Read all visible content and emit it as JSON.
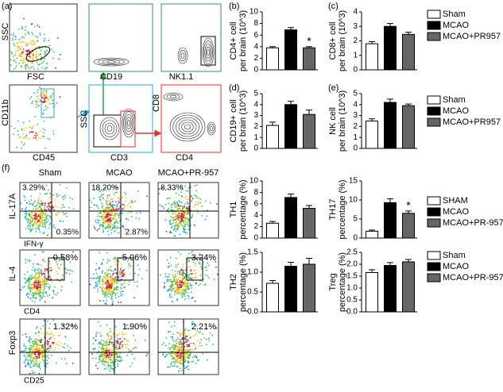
{
  "flow_a": {
    "label": "(a)",
    "texts": [
      "SSC",
      "FSC",
      "CD19",
      "NK1.1",
      "CD11b",
      "CD45",
      "SSC",
      "CD3",
      "CD8",
      "CD4"
    ]
  },
  "flow_f": {
    "label": "(f)",
    "columns": [
      "Sham",
      "MCAO",
      "MCAO+PR-957"
    ],
    "rows": [
      {
        "y_label": "IL-17A",
        "x_label": "IFN-γ",
        "gates": [
          [
            "3.29%",
            "0.35%"
          ],
          [
            "18.20%",
            "2.87%"
          ],
          [
            "8.33%"
          ]
        ]
      },
      {
        "y_label": "IL-4",
        "x_label": "CD4",
        "gates": [
          [
            "0.58%"
          ],
          [
            "5.06%"
          ],
          [
            "3.24%"
          ]
        ]
      },
      {
        "y_label": "Foxp3",
        "x_label": "CD25",
        "gates": [
          [
            "1.32%"
          ],
          [
            "1.90%"
          ],
          [
            "2.21%"
          ]
        ]
      }
    ]
  },
  "chart_data": [
    {
      "type": "bar",
      "label": "(b)",
      "ylabel": [
        "CD4+ cell",
        "per brain (10^3)"
      ],
      "values": [
        3.8,
        6.9,
        3.8
      ],
      "errors": [
        0.2,
        0.4,
        0.2
      ],
      "colors": [
        "#ffffff",
        "#000000",
        "#666666"
      ],
      "annotations": [
        null,
        null,
        "*"
      ],
      "ylim": [
        0,
        10
      ],
      "yticks": [
        0,
        2,
        4,
        6,
        8,
        10
      ]
    },
    {
      "type": "bar",
      "label": "(c)",
      "ylabel": [
        "CD8+ cell",
        "per brain (10^3)"
      ],
      "values": [
        1.8,
        3.0,
        2.45
      ],
      "errors": [
        0.15,
        0.2,
        0.15
      ],
      "colors": [
        "#ffffff",
        "#000000",
        "#666666"
      ],
      "ylim": [
        0,
        4
      ],
      "yticks": [
        0,
        1,
        2,
        3,
        4
      ]
    },
    {
      "type": "bar",
      "label": "(d)",
      "ylabel": [
        "CD19+ cell",
        "per brain (10^3)"
      ],
      "values": [
        2.1,
        4.0,
        3.1
      ],
      "errors": [
        0.3,
        0.3,
        0.4
      ],
      "colors": [
        "#ffffff",
        "#000000",
        "#666666"
      ],
      "ylim": [
        0,
        5
      ],
      "yticks": [
        0,
        1,
        2,
        3,
        4,
        5
      ]
    },
    {
      "type": "bar",
      "label": "(e)",
      "ylabel": [
        "NK cell",
        "per brain (10^3)"
      ],
      "values": [
        2.5,
        4.2,
        3.9
      ],
      "errors": [
        0.2,
        0.3,
        0.15
      ],
      "colors": [
        "#ffffff",
        "#000000",
        "#666666"
      ],
      "ylim": [
        0,
        5
      ],
      "yticks": [
        0,
        1,
        2,
        3,
        4,
        5
      ]
    },
    {
      "type": "bar",
      "ylabel": [
        "TH1",
        "percentage (%)"
      ],
      "values": [
        2.6,
        7.1,
        5.2
      ],
      "errors": [
        0.3,
        0.6,
        0.5
      ],
      "colors": [
        "#ffffff",
        "#000000",
        "#666666"
      ],
      "ylim": [
        0,
        10
      ],
      "yticks": [
        0,
        2,
        4,
        6,
        8,
        10
      ]
    },
    {
      "type": "bar",
      "ylabel": [
        "TH17",
        "percentage (%)"
      ],
      "values": [
        1.8,
        9.3,
        6.5
      ],
      "errors": [
        0.3,
        1.0,
        0.6
      ],
      "colors": [
        "#ffffff",
        "#000000",
        "#666666"
      ],
      "annotations": [
        null,
        null,
        "*"
      ],
      "ylim": [
        0,
        15
      ],
      "yticks": [
        0,
        5,
        10,
        15
      ]
    },
    {
      "type": "bar",
      "ylabel": [
        "TH2",
        "percentage (%)"
      ],
      "values": [
        0.72,
        1.15,
        1.2
      ],
      "errors": [
        0.07,
        0.1,
        0.15
      ],
      "colors": [
        "#ffffff",
        "#000000",
        "#666666"
      ],
      "ylim": [
        0,
        1.5
      ],
      "yticks": [
        {
          "value": 0,
          "label": "0.0"
        },
        {
          "value": 0.5,
          "label": "0.5"
        },
        {
          "value": 1,
          "label": "1.0"
        },
        {
          "value": 1.5,
          "label": "1.5"
        }
      ]
    },
    {
      "type": "bar",
      "ylabel": [
        "Treg",
        "percentage (%)"
      ],
      "values": [
        1.65,
        1.95,
        2.1
      ],
      "errors": [
        0.12,
        0.12,
        0.1
      ],
      "colors": [
        "#ffffff",
        "#000000",
        "#666666"
      ],
      "ylim": [
        0,
        2.5
      ],
      "yticks": [
        {
          "value": 0,
          "label": "0.0"
        },
        {
          "value": 0.5,
          "label": "0.5"
        },
        {
          "value": 1,
          "label": "1.0"
        },
        {
          "value": 1.5,
          "label": "1.5"
        },
        {
          "value": 2,
          "label": "2.0"
        },
        {
          "value": 2.5,
          "label": "2.5"
        }
      ]
    }
  ],
  "legends": [
    {
      "entries": [
        "Sham",
        "MCAO",
        "MCAO+PR957"
      ],
      "colors": [
        "#ffffff",
        "#000000",
        "#666666"
      ]
    },
    {
      "entries": [
        "Sham",
        "MCAO",
        "MCAO+PR957"
      ],
      "colors": [
        "#ffffff",
        "#000000",
        "#666666"
      ]
    },
    {
      "entries": [
        "SHAM",
        "MCAO",
        "MCAO+PR-957"
      ],
      "colors": [
        "#ffffff",
        "#000000",
        "#666666"
      ]
    },
    {
      "entries": [
        "Sham",
        "MCAO",
        "MCAO+PR-957"
      ],
      "colors": [
        "#ffffff",
        "#000000",
        "#666666"
      ]
    }
  ]
}
